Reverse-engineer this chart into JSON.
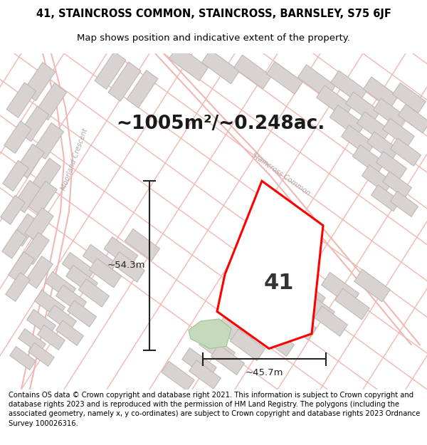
{
  "title_line1": "41, STAINCROSS COMMON, STAINCROSS, BARNSLEY, S75 6JF",
  "title_line2": "Map shows position and indicative extent of the property.",
  "area_text": "~1005m²/~0.248ac.",
  "label_number": "41",
  "dim_vertical": "~54.3m",
  "dim_horizontal": "~45.7m",
  "footer_text": "Contains OS data © Crown copyright and database right 2021. This information is subject to Crown copyright and database rights 2023 and is reproduced with the permission of HM Land Registry. The polygons (including the associated geometry, namely x, y co-ordinates) are subject to Crown copyright and database rights 2023 Ordnance Survey 100026316.",
  "map_bg_color": "#f2ece9",
  "road_color": "#f0b8b2",
  "road_fill_color": "#f7eeeb",
  "building_face": "#d8d3d0",
  "building_edge": "#bbb5b2",
  "plot_outline": "#ff0000",
  "plot_fill": "#ffffff",
  "green_color": "#c5d9bc",
  "green_edge": "#9ec494",
  "street_text_color": "#aaaaaa",
  "dim_color": "#222222",
  "title_fontsize": 10.5,
  "subtitle_fontsize": 9.5,
  "area_fontsize": 19,
  "number_fontsize": 22,
  "dim_fontsize": 9.5,
  "footer_fontsize": 7.2,
  "road_label_moorland": "Moorland Crescent",
  "road_label_staincross": "Staincross Common"
}
